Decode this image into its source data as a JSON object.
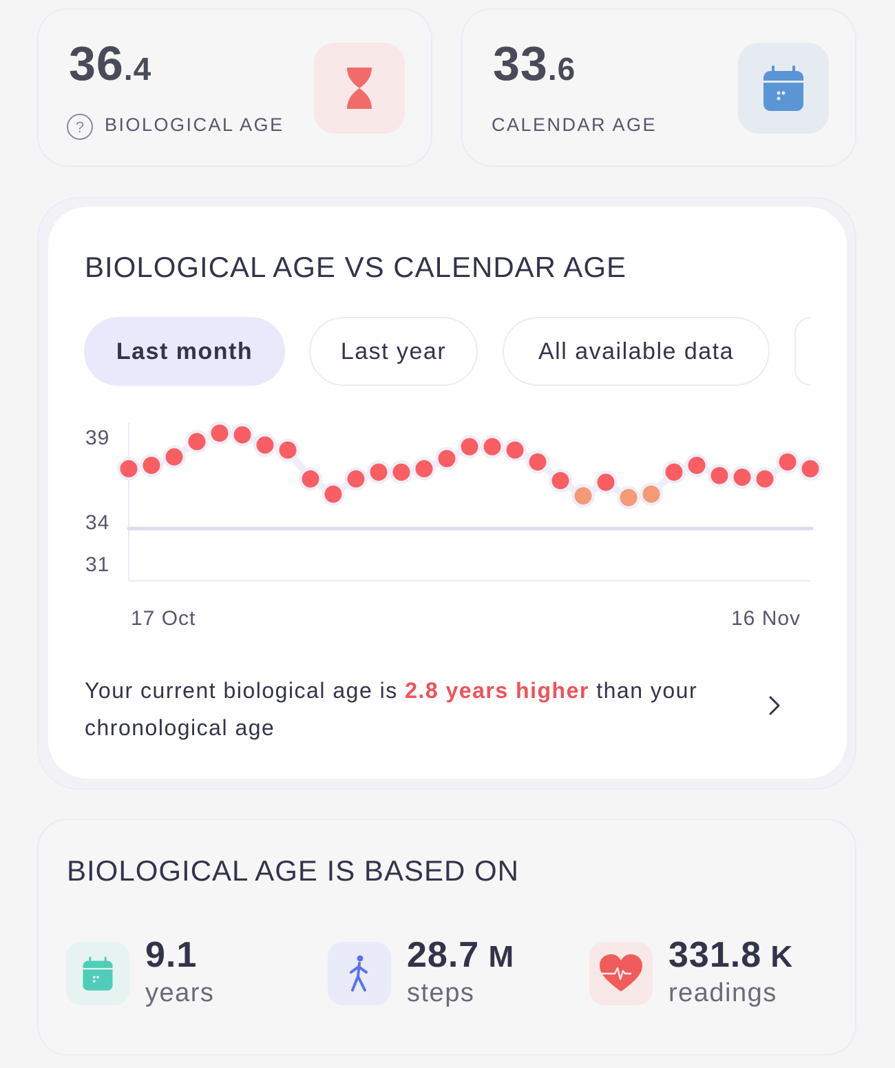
{
  "biological_age": {
    "value_int": "36",
    "value_dec": ".4",
    "label": "BIOLOGICAL AGE",
    "icon": "hourglass-icon",
    "help_icon": "question-circle-icon",
    "accent": "#f26b6b",
    "icon_bg": "#f9e8e8"
  },
  "calendar_age": {
    "value_int": "33",
    "value_dec": ".6",
    "label": "CALENDAR AGE",
    "icon": "calendar-icon",
    "accent": "#5b95d6",
    "icon_bg": "#e6ebf2"
  },
  "comparison": {
    "title": "BIOLOGICAL AGE VS CALENDAR AGE",
    "tabs": [
      {
        "label": "Last month",
        "active": true
      },
      {
        "label": "Last year",
        "active": false
      },
      {
        "label": "All available data",
        "active": false
      }
    ],
    "summary_prefix": "Your current biological age is ",
    "summary_highlight": "2.8 years higher",
    "summary_suffix": " than your chronological age",
    "chevron_icon": "chevron-right-icon"
  },
  "chart_data": {
    "type": "scatter",
    "x_start_label": "17 Oct",
    "x_end_label": "16 Nov",
    "y_ticks": [
      "39",
      "34",
      "31"
    ],
    "grid": false,
    "calendar_age_line": 33.6,
    "series": [
      {
        "values": [
          37.2,
          37.4,
          37.9,
          38.8,
          39.3,
          39.2,
          38.6,
          38.3,
          36.6,
          35.7,
          36.6,
          37.0,
          37.0,
          37.2,
          37.8,
          38.5,
          38.5,
          38.3,
          37.6,
          36.5,
          35.6,
          36.4,
          35.5,
          35.7,
          37.0,
          37.4,
          36.8,
          36.7,
          36.6,
          37.6,
          37.2
        ],
        "point_colors": [
          "#f95f62",
          "#f95f62",
          "#f95f62",
          "#f95f62",
          "#f95f62",
          "#f95f62",
          "#f95f62",
          "#f95f62",
          "#f95f62",
          "#f95f62",
          "#f95f62",
          "#f95f62",
          "#f95f62",
          "#f95f62",
          "#f95f62",
          "#f95f62",
          "#f95f62",
          "#f95f62",
          "#f95f62",
          "#f95f62",
          "#f59a74",
          "#f95f62",
          "#f59a74",
          "#f59a74",
          "#f95f62",
          "#f95f62",
          "#f95f62",
          "#f95f62",
          "#f95f62",
          "#f95f62",
          "#f95f62"
        ]
      }
    ]
  },
  "based_on": {
    "title": "BIOLOGICAL AGE IS BASED ON",
    "items": [
      {
        "value": "9.1",
        "unit_suffix": "",
        "label": "years",
        "icon": "calendar-icon",
        "color": "#4fcdb8",
        "bg": "#e6f3f0"
      },
      {
        "value": "28.7",
        "unit_suffix": " M",
        "label": "steps",
        "icon": "walking-person-icon",
        "color": "#5c73e6",
        "bg": "#e9ebf8"
      },
      {
        "value": "331.8",
        "unit_suffix": " K",
        "label": "readings",
        "icon": "heart-pulse-icon",
        "color": "#f05c5c",
        "bg": "#f9e8e8"
      }
    ]
  }
}
